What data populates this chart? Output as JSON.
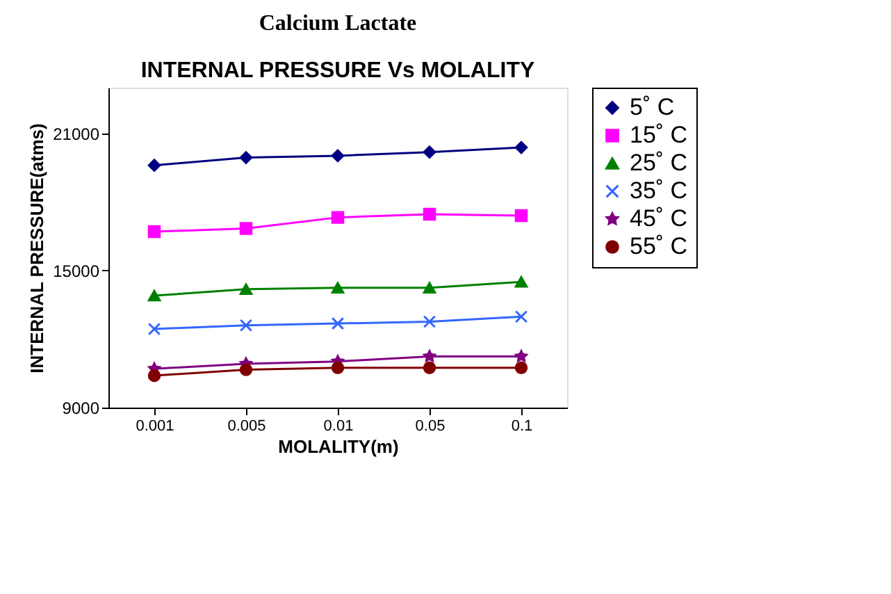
{
  "chart_data": {
    "type": "line",
    "title": "Calcium Lactate",
    "subtitle": "INTERNAL PRESSURE Vs MOLALITY",
    "xlabel": "MOLALITY(m)",
    "ylabel": "INTERNAL PRESSURE(atms)",
    "categories": [
      "0.001",
      "0.005",
      "0.01",
      "0.05",
      "0.1"
    ],
    "ylim": [
      9000,
      23000
    ],
    "yticks": [
      9000,
      15000,
      21000
    ],
    "grid": false,
    "legend": "right",
    "series": [
      {
        "name": "5˚ C",
        "color": "#000080",
        "marker": "diamond",
        "values": [
          19600,
          19940,
          20020,
          20180,
          20380
        ]
      },
      {
        "name": "15˚ C",
        "color": "#ff00ff",
        "marker": "square",
        "values": [
          16700,
          16840,
          17320,
          17460,
          17400
        ]
      },
      {
        "name": "25˚ C",
        "color": "#008000",
        "marker": "triangle",
        "values": [
          13900,
          14180,
          14240,
          14240,
          14500
        ]
      },
      {
        "name": "35˚ C",
        "color": "#3366ff",
        "marker": "cross",
        "values": [
          12440,
          12600,
          12680,
          12760,
          12980
        ]
      },
      {
        "name": "45˚ C",
        "color": "#800080",
        "marker": "star",
        "values": [
          10700,
          10920,
          11020,
          11240,
          11240
        ]
      },
      {
        "name": "55˚ C",
        "color": "#800000",
        "marker": "circle",
        "values": [
          10400,
          10660,
          10740,
          10740,
          10740
        ]
      }
    ]
  }
}
